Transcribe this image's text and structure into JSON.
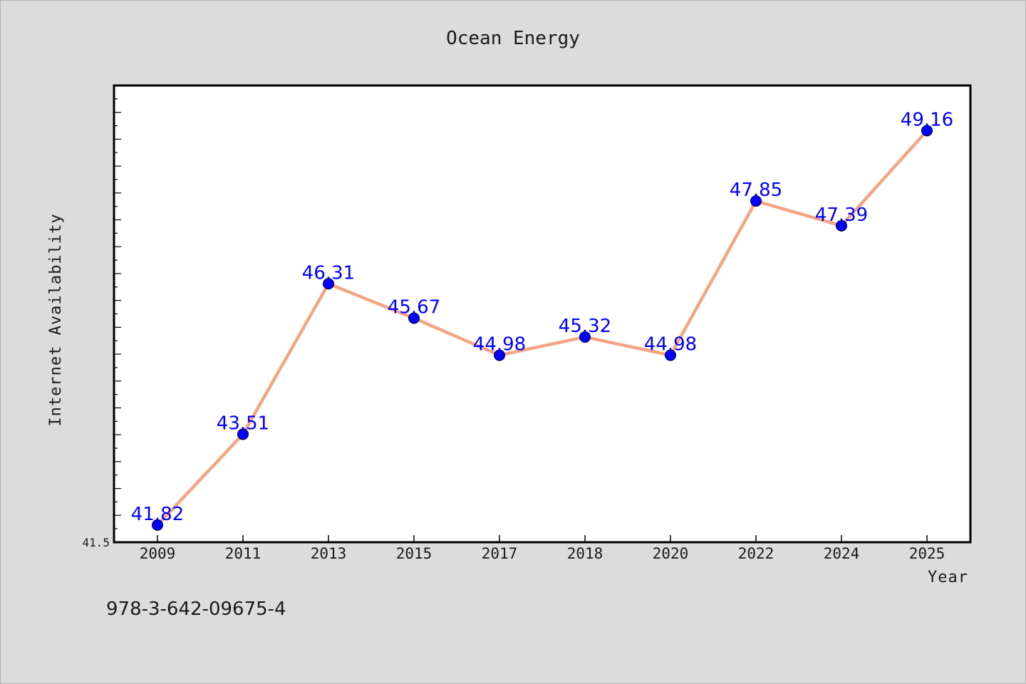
{
  "chart_data": {
    "type": "line",
    "title": "Ocean Energy",
    "xlabel": "Year",
    "ylabel": "Internet Availability",
    "categories": [
      "2009",
      "2011",
      "2013",
      "2015",
      "2017",
      "2018",
      "2020",
      "2022",
      "2024",
      "2025"
    ],
    "series": [
      {
        "values": [
          41.82,
          43.51,
          46.31,
          45.67,
          44.98,
          45.32,
          44.98,
          47.85,
          47.39,
          49.16
        ]
      }
    ],
    "ylim": [
      41.5,
      50.0
    ],
    "y_tick_labels_shown": [
      "41.5"
    ],
    "grid": false,
    "line_color": "#f4a582",
    "marker_color": "#0000ff",
    "label_color": "#0000ff"
  },
  "footnote": "978-3-642-09675-4"
}
